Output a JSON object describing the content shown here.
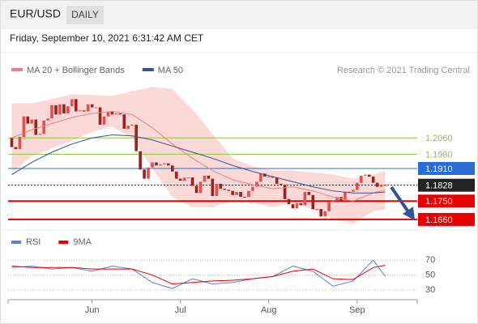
{
  "header": {
    "symbol": "EUR/USD",
    "period": "DAILY",
    "timestamp": "Friday, September 10, 2021 6:31:42 AM CET"
  },
  "chart_data": [
    {
      "type": "candlestick",
      "legend": [
        {
          "name": "MA 20 + Bollinger Bands",
          "color": "#f08080"
        },
        {
          "name": "MA 50",
          "color": "#2f5597"
        }
      ],
      "credit": "Research © 2021 Trading Central",
      "up_color": "#e05050",
      "down_color": "#9b2020",
      "band_color": "#fbd9d6",
      "ylim": [
        1.1616,
        1.2359
      ],
      "xticks": [
        {
          "value": 20,
          "label": "Jun"
        },
        {
          "value": 42,
          "label": "Jul"
        },
        {
          "value": 64,
          "label": "Aug"
        },
        {
          "value": 86,
          "label": "Sep"
        }
      ],
      "xlim": [
        0,
        94
      ],
      "open": [
        1.206,
        1.2015,
        1.2005,
        1.2065,
        1.2165,
        1.213,
        1.215,
        1.2075,
        1.208,
        1.2145,
        1.2155,
        1.222,
        1.2175,
        1.2225,
        1.218,
        1.2215,
        1.225,
        1.219,
        1.2195,
        1.219,
        1.2225,
        1.221,
        1.221,
        1.2125,
        1.2165,
        1.219,
        1.2175,
        1.218,
        1.2175,
        1.2105,
        1.212,
        1.2125,
        1.1995,
        1.1905,
        1.186,
        1.1915,
        1.194,
        1.1925,
        1.193,
        1.1935,
        1.1925,
        1.1895,
        1.186,
        1.185,
        1.1865,
        1.1866,
        1.1825,
        1.179,
        1.1845,
        1.1875,
        1.186,
        1.1775,
        1.1835,
        1.181,
        1.1805,
        1.18,
        1.178,
        1.1795,
        1.1771,
        1.177,
        1.18,
        1.182,
        1.1845,
        1.1885,
        1.187,
        1.1871,
        1.1865,
        1.1835,
        1.183,
        1.176,
        1.1735,
        1.1715,
        1.174,
        1.173,
        1.1795,
        1.178,
        1.171,
        1.1711,
        1.1675,
        1.17,
        1.1745,
        1.1755,
        1.177,
        1.175,
        1.1795,
        1.1796,
        1.1805,
        1.184,
        1.1875,
        1.188,
        1.187,
        1.184,
        1.182,
        1.183
      ],
      "close": [
        1.2015,
        1.2005,
        1.2065,
        1.2165,
        1.213,
        1.215,
        1.2075,
        1.208,
        1.2145,
        1.2155,
        1.222,
        1.2175,
        1.2225,
        1.218,
        1.2215,
        1.225,
        1.219,
        1.2195,
        1.219,
        1.2225,
        1.221,
        1.221,
        1.2125,
        1.2165,
        1.219,
        1.2175,
        1.218,
        1.2175,
        1.2105,
        1.212,
        1.2125,
        1.1995,
        1.1905,
        1.186,
        1.1915,
        1.194,
        1.1925,
        1.193,
        1.1935,
        1.1925,
        1.1895,
        1.186,
        1.185,
        1.1865,
        1.1866,
        1.1825,
        1.179,
        1.1845,
        1.1875,
        1.186,
        1.1775,
        1.1835,
        1.181,
        1.1805,
        1.18,
        1.178,
        1.1795,
        1.1771,
        1.177,
        1.18,
        1.182,
        1.1845,
        1.1885,
        1.187,
        1.1871,
        1.1865,
        1.1835,
        1.183,
        1.176,
        1.1735,
        1.1715,
        1.174,
        1.173,
        1.1795,
        1.178,
        1.171,
        1.1711,
        1.1675,
        1.17,
        1.1745,
        1.1755,
        1.177,
        1.175,
        1.1795,
        1.1796,
        1.1805,
        1.184,
        1.1875,
        1.188,
        1.187,
        1.184,
        1.182,
        1.183,
        1.1828
      ],
      "lines_x": [
        0,
        5,
        10,
        15,
        20,
        25,
        30,
        35,
        40,
        45,
        50,
        55,
        60,
        65,
        70,
        75,
        80,
        85,
        90,
        93
      ],
      "bb_upper": [
        1.223,
        1.223,
        1.225,
        1.2275,
        1.227,
        1.2265,
        1.229,
        1.231,
        1.23,
        1.22,
        1.208,
        1.196,
        1.192,
        1.19,
        1.19,
        1.189,
        1.188,
        1.186,
        1.188,
        1.19
      ],
      "bb_lower": [
        1.189,
        1.197,
        1.201,
        1.2045,
        1.209,
        1.2115,
        1.206,
        1.191,
        1.177,
        1.172,
        1.172,
        1.175,
        1.174,
        1.172,
        1.174,
        1.171,
        1.166,
        1.164,
        1.17,
        1.171
      ],
      "ma20": [
        1.206,
        1.21,
        1.213,
        1.216,
        1.218,
        1.219,
        1.2175,
        1.211,
        1.203,
        1.196,
        1.19,
        1.1855,
        1.183,
        1.181,
        1.182,
        1.18,
        1.177,
        1.175,
        1.179,
        1.1805
      ],
      "ma50": [
        1.188,
        1.194,
        1.199,
        1.203,
        1.206,
        1.2075,
        1.207,
        1.205,
        1.202,
        1.199,
        1.196,
        1.1925,
        1.1895,
        1.187,
        1.1845,
        1.182,
        1.18,
        1.179,
        1.179,
        1.1795
      ],
      "levels": [
        {
          "value": 1.206,
          "label": "1.2060",
          "color": "#8dc63f",
          "boxed": false
        },
        {
          "value": 1.198,
          "label": "1.1980",
          "color": "#8dc63f",
          "boxed": false
        },
        {
          "value": 1.191,
          "label": "1.1910",
          "color": "#2b6cd4",
          "boxed": true
        },
        {
          "value": 1.1828,
          "label": "1.1828",
          "color": "#222222",
          "boxed": true,
          "dashed": true
        },
        {
          "value": 1.175,
          "label": "1.1750",
          "color": "#e60000",
          "boxed": true
        },
        {
          "value": 1.166,
          "label": "1.1660",
          "color": "#e60000",
          "boxed": true
        }
      ]
    },
    {
      "type": "line",
      "xlim": [
        0,
        94
      ],
      "ylim": [
        17,
        82
      ],
      "yticks": [
        70,
        50,
        30
      ],
      "series": [
        {
          "name": "RSI",
          "color": "#5b7fe0",
          "x": [
            0,
            5,
            10,
            15,
            20,
            25,
            30,
            35,
            40,
            45,
            50,
            55,
            60,
            65,
            70,
            75,
            80,
            85,
            90,
            93
          ],
          "values": [
            60,
            62,
            58,
            60,
            55,
            62,
            58,
            40,
            32,
            45,
            38,
            40,
            45,
            48,
            62,
            55,
            35,
            42,
            70,
            48
          ]
        },
        {
          "name": "9MA",
          "color": "#e60000",
          "x": [
            0,
            5,
            10,
            15,
            20,
            25,
            30,
            35,
            40,
            45,
            50,
            55,
            60,
            65,
            70,
            75,
            80,
            85,
            90,
            93
          ],
          "values": [
            62,
            60,
            60,
            60,
            58,
            58,
            58,
            50,
            38,
            40,
            42,
            43,
            45,
            48,
            55,
            58,
            45,
            44,
            60,
            63
          ]
        }
      ]
    }
  ]
}
